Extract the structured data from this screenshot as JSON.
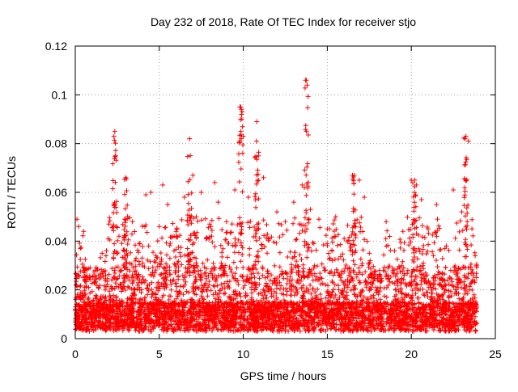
{
  "chart_data": {
    "type": "scatter",
    "title": "Day 232 of 2018, Rate Of TEC Index for receiver stjo",
    "xlabel": "GPS time / hours",
    "ylabel": "ROTI / TECUs",
    "xlim": [
      0,
      25
    ],
    "ylim": [
      0,
      0.12
    ],
    "x_ticks": [
      0,
      5,
      10,
      15,
      20,
      25
    ],
    "x_tick_labels": [
      "0",
      "5",
      "10",
      "15",
      "20",
      "25"
    ],
    "y_ticks": [
      0,
      0.02,
      0.04,
      0.06,
      0.08,
      0.1,
      0.12
    ],
    "y_tick_labels": [
      "0",
      "0.02",
      "0.04",
      "0.06",
      "0.08",
      "0.1",
      "0.12"
    ],
    "grid": true,
    "marker": "+",
    "series": [
      {
        "name": "ROTI",
        "color": "#ff0000",
        "note": "Dense scatter of roughly 10,000 samples from 0 to ~23.9 h; bulk of values between 0.003 and 0.045 TECU/s, representative points listed",
        "x": [
          0.0,
          0.1,
          0.2,
          0.3,
          0.5,
          0.8,
          1.2,
          1.6,
          2.0,
          2.3,
          2.4,
          2.6,
          3.0,
          3.4,
          3.8,
          4.2,
          4.5,
          4.8,
          5.0,
          5.2,
          5.5,
          6.0,
          6.5,
          6.8,
          7.0,
          7.2,
          7.5,
          8.0,
          8.3,
          8.5,
          9.0,
          9.5,
          9.8,
          9.9,
          10.0,
          10.3,
          10.8,
          10.9,
          11.2,
          11.5,
          12.0,
          12.5,
          13.0,
          13.5,
          13.7,
          13.8,
          14.0,
          14.5,
          15.0,
          15.5,
          16.0,
          16.5,
          16.9,
          17.2,
          17.5,
          18.0,
          18.5,
          19.0,
          19.5,
          20.0,
          20.3,
          20.6,
          21.0,
          21.5,
          22.0,
          22.5,
          23.0,
          23.2,
          23.4,
          23.8
        ],
        "y": [
          0.012,
          0.049,
          0.046,
          0.037,
          0.044,
          0.021,
          0.028,
          0.035,
          0.047,
          0.083,
          0.075,
          0.042,
          0.066,
          0.048,
          0.039,
          0.059,
          0.06,
          0.034,
          0.046,
          0.063,
          0.055,
          0.044,
          0.058,
          0.082,
          0.067,
          0.05,
          0.06,
          0.047,
          0.064,
          0.056,
          0.048,
          0.061,
          0.095,
          0.092,
          0.083,
          0.058,
          0.089,
          0.075,
          0.066,
          0.041,
          0.052,
          0.048,
          0.056,
          0.063,
          0.106,
          0.104,
          0.053,
          0.049,
          0.045,
          0.05,
          0.041,
          0.067,
          0.065,
          0.058,
          0.035,
          0.024,
          0.048,
          0.036,
          0.044,
          0.065,
          0.063,
          0.057,
          0.045,
          0.055,
          0.037,
          0.061,
          0.052,
          0.082,
          0.081,
          0.034
        ]
      }
    ],
    "peaks": [
      {
        "x": 2.35,
        "y": 0.085
      },
      {
        "x": 3.0,
        "y": 0.066
      },
      {
        "x": 6.8,
        "y": 0.082
      },
      {
        "x": 9.85,
        "y": 0.095
      },
      {
        "x": 10.8,
        "y": 0.089
      },
      {
        "x": 13.75,
        "y": 0.106
      },
      {
        "x": 16.6,
        "y": 0.067
      },
      {
        "x": 20.2,
        "y": 0.065
      },
      {
        "x": 23.25,
        "y": 0.083
      }
    ]
  }
}
